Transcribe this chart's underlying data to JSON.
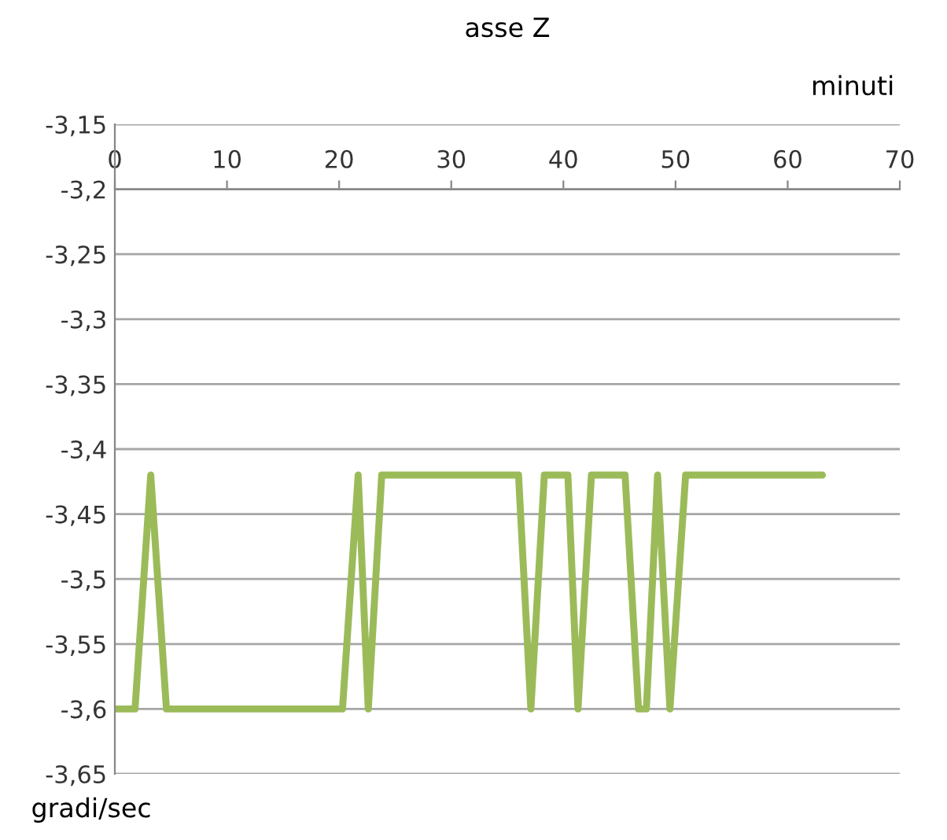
{
  "chart_data": {
    "type": "line",
    "title": "asse Z",
    "xlabel": "minuti",
    "ylabel": "gradi/sec",
    "xlim": [
      0,
      70
    ],
    "xticks": [
      0,
      10,
      20,
      30,
      40,
      50,
      60,
      70
    ],
    "ylim": [
      -3.65,
      -3.15
    ],
    "yticks": [
      {
        "value": -3.15,
        "label": "-3,15"
      },
      {
        "value": -3.2,
        "label": "-3,2"
      },
      {
        "value": -3.25,
        "label": "-3,25"
      },
      {
        "value": -3.3,
        "label": "-3,3"
      },
      {
        "value": -3.35,
        "label": "-3,35"
      },
      {
        "value": -3.4,
        "label": "-3,4"
      },
      {
        "value": -3.45,
        "label": "-3,45"
      },
      {
        "value": -3.5,
        "label": "-3,5"
      },
      {
        "value": -3.55,
        "label": "-3,55"
      },
      {
        "value": -3.6,
        "label": "-3,6"
      },
      {
        "value": -3.65,
        "label": "-3,65"
      }
    ],
    "grid": "y",
    "marker": "none",
    "line_style": "solid",
    "series": [
      {
        "color": "#9bbb59",
        "x": [
          0,
          1.8,
          3.2,
          4.6,
          20.3,
          21.7,
          22.6,
          23.8,
          36.0,
          37.1,
          38.3,
          40.4,
          41.3,
          42.5,
          45.5,
          46.7,
          47.4,
          48.4,
          49.5,
          50.9,
          63.1
        ],
        "values": [
          -3.6,
          -3.6,
          -3.42,
          -3.6,
          -3.6,
          -3.42,
          -3.6,
          -3.42,
          -3.42,
          -3.6,
          -3.42,
          -3.42,
          -3.6,
          -3.42,
          -3.42,
          -3.6,
          -3.6,
          -3.42,
          -3.6,
          -3.42,
          -3.42
        ]
      }
    ]
  }
}
